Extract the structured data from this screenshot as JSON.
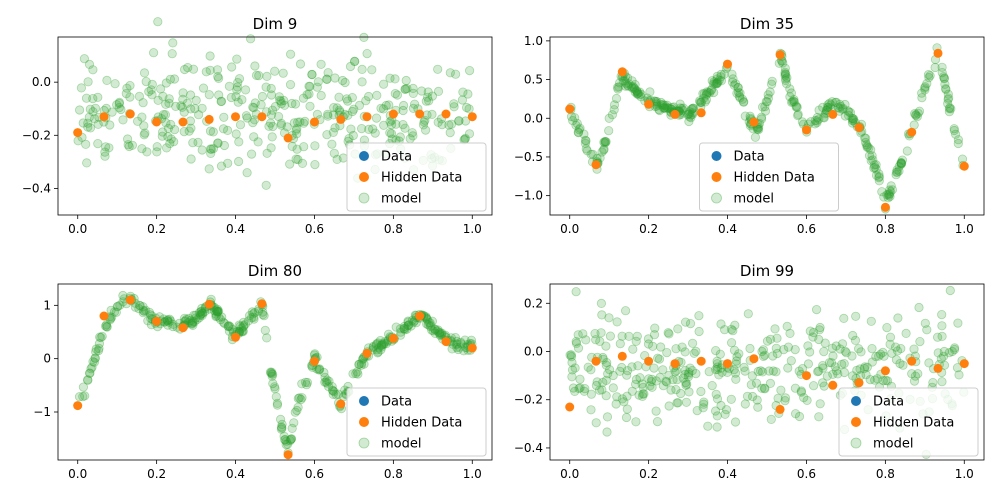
{
  "colors": {
    "data": "#1f77b4",
    "hidden": "#ff7f0e",
    "model": "#2ca02c"
  },
  "legend": {
    "data": "Data",
    "hidden": "Hidden Data",
    "model": "model"
  },
  "chart_data": [
    {
      "type": "scatter",
      "title": "Dim 9",
      "xlim": [
        -0.05,
        1.05
      ],
      "ylim": [
        -0.5,
        0.17
      ],
      "xticks": [
        0.0,
        0.2,
        0.4,
        0.6,
        0.8,
        1.0
      ],
      "xtick_labels": [
        "0.0",
        "0.2",
        "0.4",
        "0.6",
        "0.8",
        "1.0"
      ],
      "yticks": [
        -0.4,
        -0.2,
        0.0
      ],
      "ytick_labels": [
        "−0.4",
        "−0.2",
        "0.0"
      ],
      "legend_position": "lower-right",
      "hidden_data": {
        "x": [
          0.0,
          0.0667,
          0.1333,
          0.2,
          0.2667,
          0.3333,
          0.4,
          0.4667,
          0.5333,
          0.6,
          0.6667,
          0.7333,
          0.8,
          0.8667,
          0.9333,
          1.0
        ],
        "y": [
          -0.19,
          -0.13,
          -0.12,
          -0.15,
          -0.15,
          -0.14,
          -0.13,
          -0.13,
          -0.21,
          -0.15,
          -0.14,
          -0.13,
          -0.12,
          -0.12,
          -0.12,
          -0.13
        ]
      },
      "model": {
        "n": 400,
        "seed": 9,
        "curve": [
          [
            0,
            -0.13
          ],
          [
            1,
            -0.13
          ]
        ],
        "spread": 0.11
      }
    },
    {
      "type": "scatter",
      "title": "Dim 35",
      "xlim": [
        -0.05,
        1.05
      ],
      "ylim": [
        -1.25,
        1.05
      ],
      "xticks": [
        0.0,
        0.2,
        0.4,
        0.6,
        0.8,
        1.0
      ],
      "xtick_labels": [
        "0.0",
        "0.2",
        "0.4",
        "0.6",
        "0.8",
        "1.0"
      ],
      "yticks": [
        -1.0,
        -0.5,
        0.0,
        0.5,
        1.0
      ],
      "ytick_labels": [
        "−1.0",
        "−0.5",
        "0.0",
        "0.5",
        "1.0"
      ],
      "legend_position": "lower-center",
      "hidden_data": {
        "x": [
          0.0,
          0.0667,
          0.1333,
          0.2,
          0.2667,
          0.3333,
          0.4,
          0.4667,
          0.5333,
          0.6,
          0.6667,
          0.7333,
          0.8,
          0.8667,
          0.9333,
          1.0
        ],
        "y": [
          0.12,
          -0.6,
          0.6,
          0.18,
          0.05,
          0.07,
          0.7,
          -0.05,
          0.82,
          -0.15,
          0.05,
          -0.12,
          -1.15,
          -0.18,
          0.84,
          -0.62
        ]
      },
      "model": {
        "n": 400,
        "seed": 35,
        "curve": [
          [
            0,
            0.12
          ],
          [
            0.03,
            -0.2
          ],
          [
            0.067,
            -0.65
          ],
          [
            0.09,
            -0.3
          ],
          [
            0.13,
            0.55
          ],
          [
            0.16,
            0.4
          ],
          [
            0.2,
            0.2
          ],
          [
            0.25,
            0.12
          ],
          [
            0.3,
            0.05
          ],
          [
            0.34,
            0.25
          ],
          [
            0.4,
            0.65
          ],
          [
            0.43,
            0.3
          ],
          [
            0.47,
            -0.2
          ],
          [
            0.5,
            0.2
          ],
          [
            0.535,
            0.82
          ],
          [
            0.56,
            0.3
          ],
          [
            0.6,
            -0.15
          ],
          [
            0.64,
            0.05
          ],
          [
            0.67,
            0.2
          ],
          [
            0.7,
            0.1
          ],
          [
            0.74,
            -0.15
          ],
          [
            0.78,
            -0.7
          ],
          [
            0.8,
            -1.12
          ],
          [
            0.84,
            -0.6
          ],
          [
            0.87,
            -0.1
          ],
          [
            0.9,
            0.4
          ],
          [
            0.935,
            0.84
          ],
          [
            0.96,
            0.2
          ],
          [
            1.0,
            -0.65
          ]
        ],
        "spread": 0.045
      }
    },
    {
      "type": "scatter",
      "title": "Dim 80",
      "xlim": [
        -0.05,
        1.05
      ],
      "ylim": [
        -1.9,
        1.4
      ],
      "xticks": [
        0.0,
        0.2,
        0.4,
        0.6,
        0.8,
        1.0
      ],
      "xtick_labels": [
        "0.0",
        "0.2",
        "0.4",
        "0.6",
        "0.8",
        "1.0"
      ],
      "yticks": [
        -1,
        0,
        1
      ],
      "ytick_labels": [
        "−1",
        "0",
        "1"
      ],
      "legend_position": "lower-right",
      "hidden_data": {
        "x": [
          0.0,
          0.0667,
          0.1333,
          0.2,
          0.2667,
          0.3333,
          0.4,
          0.4667,
          0.5333,
          0.6,
          0.6667,
          0.7333,
          0.8,
          0.8667,
          0.9333,
          1.0
        ],
        "y": [
          -0.88,
          0.8,
          1.1,
          0.7,
          0.58,
          1.02,
          0.4,
          1.03,
          -1.8,
          -0.05,
          -0.85,
          0.1,
          0.38,
          0.8,
          0.32,
          0.2
        ]
      },
      "model": {
        "n": 400,
        "seed": 80,
        "curve": [
          [
            0,
            -0.88
          ],
          [
            0.03,
            -0.3
          ],
          [
            0.07,
            0.6
          ],
          [
            0.1,
            0.95
          ],
          [
            0.13,
            1.1
          ],
          [
            0.16,
            0.95
          ],
          [
            0.2,
            0.7
          ],
          [
            0.25,
            0.62
          ],
          [
            0.3,
            0.75
          ],
          [
            0.333,
            1.0
          ],
          [
            0.37,
            0.75
          ],
          [
            0.4,
            0.42
          ],
          [
            0.44,
            0.75
          ],
          [
            0.467,
            1.03
          ],
          [
            0.49,
            -0.2
          ],
          [
            0.51,
            -1.0
          ],
          [
            0.533,
            -1.75
          ],
          [
            0.56,
            -0.8
          ],
          [
            0.6,
            0.0
          ],
          [
            0.63,
            -0.4
          ],
          [
            0.667,
            -0.85
          ],
          [
            0.7,
            -0.3
          ],
          [
            0.733,
            0.1
          ],
          [
            0.8,
            0.38
          ],
          [
            0.867,
            0.82
          ],
          [
            0.9,
            0.6
          ],
          [
            0.933,
            0.35
          ],
          [
            1.0,
            0.2
          ]
        ],
        "spread": 0.06
      }
    },
    {
      "type": "scatter",
      "title": "Dim 99",
      "xlim": [
        -0.05,
        1.05
      ],
      "ylim": [
        -0.45,
        0.28
      ],
      "xticks": [
        0.0,
        0.2,
        0.4,
        0.6,
        0.8,
        1.0
      ],
      "xtick_labels": [
        "0.0",
        "0.2",
        "0.4",
        "0.6",
        "0.8",
        "1.0"
      ],
      "yticks": [
        -0.4,
        -0.2,
        0.0,
        0.2
      ],
      "ytick_labels": [
        "−0.4",
        "−0.2",
        "0.0",
        "0.2"
      ],
      "legend_position": "lower-right",
      "hidden_data": {
        "x": [
          0.0,
          0.0667,
          0.1333,
          0.2,
          0.2667,
          0.3333,
          0.4,
          0.4667,
          0.5333,
          0.6,
          0.6667,
          0.7333,
          0.8,
          0.8667,
          0.9333,
          1.0
        ],
        "y": [
          -0.23,
          -0.04,
          -0.02,
          -0.04,
          -0.05,
          -0.04,
          -0.05,
          -0.03,
          -0.24,
          -0.1,
          -0.14,
          -0.13,
          -0.08,
          -0.04,
          -0.07,
          -0.05
        ]
      },
      "model": {
        "n": 400,
        "seed": 99,
        "curve": [
          [
            0,
            -0.07
          ],
          [
            1,
            -0.07
          ]
        ],
        "spread": 0.11
      }
    }
  ]
}
